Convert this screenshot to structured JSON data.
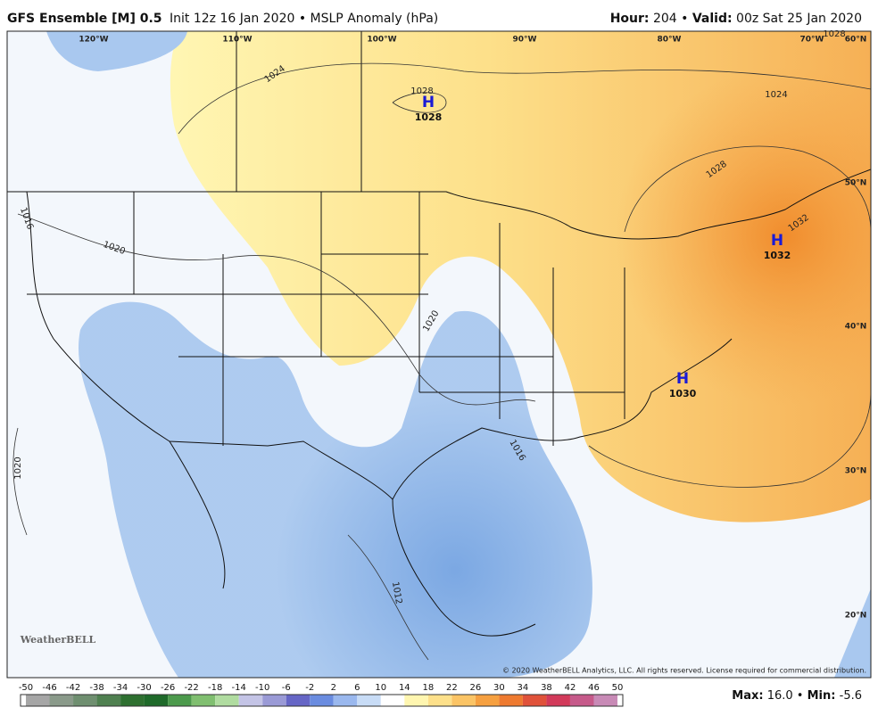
{
  "header": {
    "model": "GFS Ensemble [M] 0.5",
    "subtitle": "Init 12z 16 Jan 2020 • MSLP Anomaly (hPa)",
    "hour_label": "Hour:",
    "hour": "204 •",
    "valid_label": "Valid:",
    "valid": "00z Sat 25 Jan 2020"
  },
  "map": {
    "longitudes": [
      "120°W",
      "110°W",
      "100°W",
      "90°W",
      "80°W",
      "70°W"
    ],
    "latitudes": [
      "60°N",
      "50°N",
      "40°N",
      "30°N",
      "20°N"
    ],
    "highs": [
      {
        "symbol": "H",
        "value": "1028"
      },
      {
        "symbol": "H",
        "value": "1032"
      },
      {
        "symbol": "H",
        "value": "1030"
      }
    ],
    "contour_labels": [
      "1024",
      "1024",
      "1028",
      "1028",
      "1028",
      "1032",
      "1020",
      "1020",
      "1020",
      "1016",
      "1016",
      "1012"
    ],
    "copyright": "© 2020 WeatherBELL Analytics, LLC. All rights reserved. License required for commercial distribution.",
    "logo": "WeatherBELL"
  },
  "colorbar": {
    "ticks": [
      -50,
      -46,
      -42,
      -38,
      -34,
      -30,
      -26,
      -22,
      -18,
      -14,
      -10,
      -6,
      -2,
      2,
      6,
      10,
      14,
      18,
      22,
      26,
      30,
      34,
      38,
      42,
      46,
      50
    ]
  },
  "footer": {
    "max_label": "Max:",
    "max": "16.0 •",
    "min_label": "Min:",
    "min": "-5.6"
  }
}
